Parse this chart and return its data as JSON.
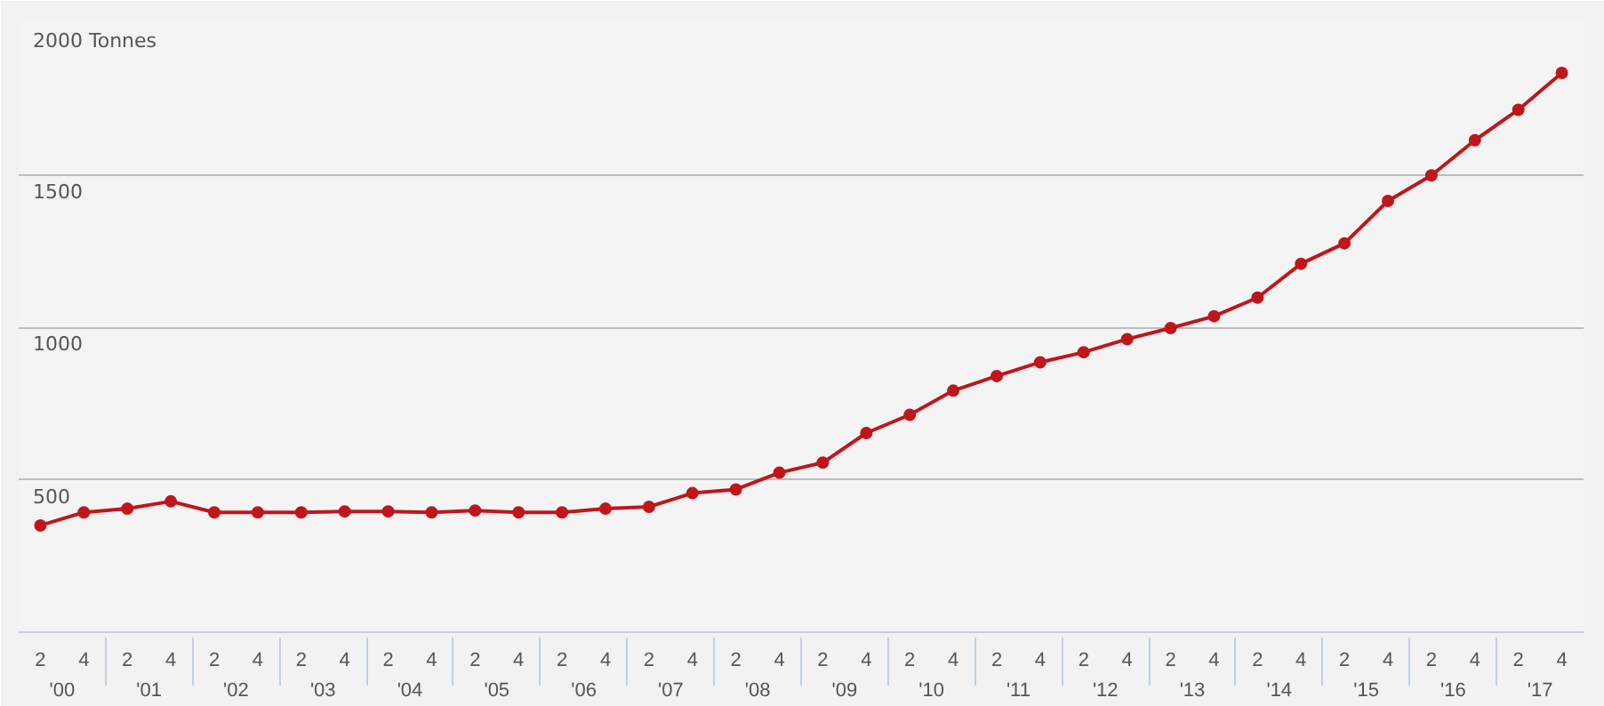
{
  "chart_data": {
    "type": "line",
    "categories": [
      "2",
      "4",
      "2",
      "4",
      "2",
      "4",
      "2",
      "4",
      "2",
      "4",
      "2",
      "4",
      "2",
      "4",
      "2",
      "4",
      "2",
      "4",
      "2",
      "4",
      "2",
      "4",
      "2",
      "4",
      "2",
      "4",
      "2",
      "4",
      "2",
      "4",
      "2",
      "4",
      "2",
      "4",
      "2",
      "4"
    ],
    "annotations": [
      "'00",
      "'01",
      "'02",
      "'03",
      "'04",
      "'05",
      "'06",
      "'07",
      "'08",
      "'09",
      "'10",
      "'11",
      "'12",
      "'13",
      "'14",
      "'15",
      "'16",
      "'17"
    ],
    "series": [
      {
        "color": "#c0161b",
        "values": [
          350,
          393,
          405,
          429,
          393,
          393,
          393,
          396,
          396,
          393,
          399,
          393,
          393,
          405,
          411,
          456,
          468,
          523,
          556,
          653,
          713,
          792,
          840,
          885,
          918,
          961,
          997,
          1036,
          1097,
          1208,
          1275,
          1414,
          1498,
          1613,
          1713,
          1834
        ]
      }
    ],
    "ylim": [
      0,
      2000
    ],
    "yticks": [
      500,
      1000,
      1500,
      {
        "value": 2000,
        "label": "2000 Tonnes"
      }
    ],
    "grid": "y",
    "marker": "circle",
    "line_style": "solid"
  }
}
